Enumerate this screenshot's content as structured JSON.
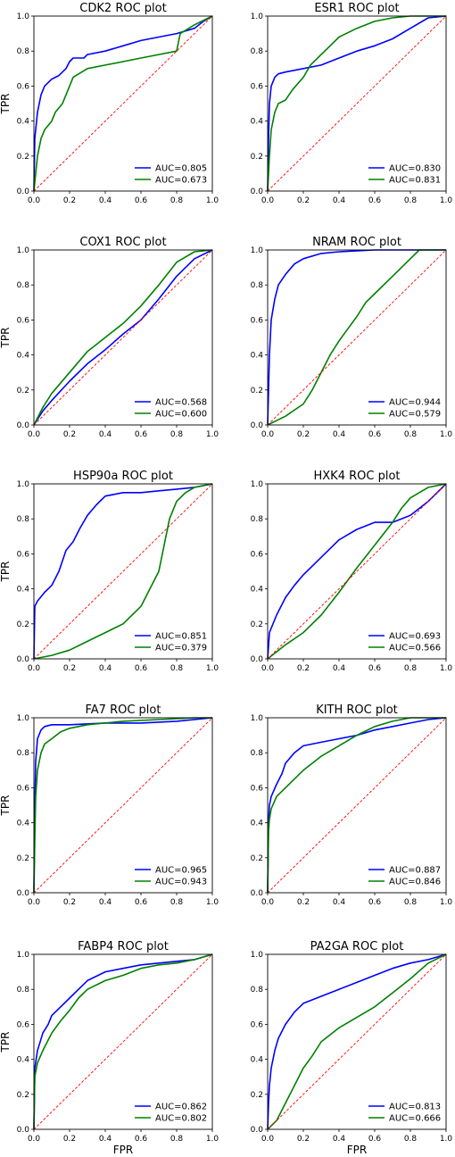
{
  "figure": {
    "xlabel": "FPR",
    "ylabel": "TPR"
  },
  "colors": {
    "series1": "#0000ff",
    "series2": "#008000",
    "diagonal": "#ff0000"
  },
  "chart_data": [
    {
      "type": "line",
      "title": "CDK2 ROC plot",
      "xlim": [
        0,
        1
      ],
      "ylim": [
        0,
        1
      ],
      "xticks": [
        "0.0",
        "0.2",
        "0.4",
        "0.6",
        "0.8",
        "1.0"
      ],
      "yticks": [
        "0.0",
        "0.2",
        "0.4",
        "0.6",
        "0.8",
        "1.0"
      ],
      "ylabel": "TPR",
      "xlabel": "",
      "legend": "lower-right",
      "series": [
        {
          "name": "AUC=0.805",
          "x": [
            0,
            0.005,
            0.02,
            0.04,
            0.06,
            0.1,
            0.14,
            0.18,
            0.2,
            0.22,
            0.28,
            0.3,
            0.4,
            0.5,
            0.6,
            0.7,
            0.8,
            0.9,
            0.95,
            1
          ],
          "y": [
            0,
            0.3,
            0.45,
            0.55,
            0.6,
            0.64,
            0.66,
            0.7,
            0.74,
            0.76,
            0.76,
            0.78,
            0.8,
            0.83,
            0.86,
            0.88,
            0.9,
            0.93,
            0.97,
            1
          ]
        },
        {
          "name": "AUC=0.673",
          "x": [
            0,
            0.01,
            0.02,
            0.04,
            0.06,
            0.1,
            0.12,
            0.16,
            0.18,
            0.2,
            0.22,
            0.3,
            0.4,
            0.5,
            0.6,
            0.7,
            0.8,
            0.82,
            0.9,
            0.96,
            1
          ],
          "y": [
            0,
            0.1,
            0.2,
            0.3,
            0.35,
            0.4,
            0.45,
            0.5,
            0.55,
            0.6,
            0.65,
            0.7,
            0.72,
            0.74,
            0.76,
            0.78,
            0.8,
            0.9,
            0.95,
            0.98,
            1
          ]
        },
        {
          "name": "",
          "x": [
            0,
            1
          ],
          "y": [
            0,
            1
          ]
        }
      ]
    },
    {
      "type": "line",
      "title": "ESR1 ROC plot",
      "xlim": [
        0,
        1
      ],
      "ylim": [
        0,
        1
      ],
      "xticks": [
        "0.0",
        "0.2",
        "0.4",
        "0.6",
        "0.8",
        "1.0"
      ],
      "yticks": [
        "0.0",
        "0.2",
        "0.4",
        "0.6",
        "0.8",
        "1.0"
      ],
      "ylabel": "",
      "xlabel": "",
      "legend": "lower-right",
      "series": [
        {
          "name": "AUC=0.830",
          "x": [
            0,
            0.005,
            0.01,
            0.02,
            0.04,
            0.06,
            0.1,
            0.2,
            0.3,
            0.4,
            0.5,
            0.6,
            0.7,
            0.8,
            0.9,
            1
          ],
          "y": [
            0,
            0.3,
            0.5,
            0.6,
            0.65,
            0.67,
            0.68,
            0.7,
            0.72,
            0.76,
            0.8,
            0.83,
            0.87,
            0.93,
            0.99,
            1
          ]
        },
        {
          "name": "AUC=0.831",
          "x": [
            0,
            0.01,
            0.02,
            0.04,
            0.06,
            0.1,
            0.14,
            0.2,
            0.24,
            0.3,
            0.36,
            0.4,
            0.5,
            0.6,
            0.7,
            0.8,
            0.9,
            1
          ],
          "y": [
            0,
            0.2,
            0.35,
            0.45,
            0.5,
            0.52,
            0.58,
            0.65,
            0.72,
            0.78,
            0.84,
            0.88,
            0.93,
            0.97,
            0.99,
            1,
            1,
            1
          ]
        },
        {
          "name": "",
          "x": [
            0,
            1
          ],
          "y": [
            0,
            1
          ]
        }
      ]
    },
    {
      "type": "line",
      "title": "COX1 ROC plot",
      "xlim": [
        0,
        1
      ],
      "ylim": [
        0,
        1
      ],
      "xticks": [
        "0.0",
        "0.2",
        "0.4",
        "0.6",
        "0.8",
        "1.0"
      ],
      "yticks": [
        "0.0",
        "0.2",
        "0.4",
        "0.6",
        "0.8",
        "1.0"
      ],
      "ylabel": "TPR",
      "xlabel": "",
      "legend": "lower-right",
      "series": [
        {
          "name": "AUC=0.568",
          "x": [
            0,
            0.05,
            0.1,
            0.2,
            0.3,
            0.4,
            0.5,
            0.6,
            0.7,
            0.8,
            0.9,
            1
          ],
          "y": [
            0,
            0.08,
            0.14,
            0.25,
            0.35,
            0.43,
            0.52,
            0.6,
            0.72,
            0.85,
            0.95,
            1
          ]
        },
        {
          "name": "AUC=0.600",
          "x": [
            0,
            0.05,
            0.1,
            0.2,
            0.3,
            0.4,
            0.5,
            0.6,
            0.7,
            0.8,
            0.9,
            1
          ],
          "y": [
            0,
            0.1,
            0.18,
            0.3,
            0.42,
            0.5,
            0.58,
            0.68,
            0.8,
            0.93,
            0.99,
            1
          ]
        },
        {
          "name": "",
          "x": [
            0,
            1
          ],
          "y": [
            0,
            1
          ]
        }
      ]
    },
    {
      "type": "line",
      "title": "NRAM ROC plot",
      "xlim": [
        0,
        1
      ],
      "ylim": [
        0,
        1
      ],
      "xticks": [
        "0.0",
        "0.2",
        "0.4",
        "0.6",
        "0.8",
        "1.0"
      ],
      "yticks": [
        "0.0",
        "0.2",
        "0.4",
        "0.6",
        "0.8",
        "1.0"
      ],
      "ylabel": "",
      "xlabel": "",
      "legend": "lower-right",
      "series": [
        {
          "name": "AUC=0.944",
          "x": [
            0,
            0.005,
            0.01,
            0.02,
            0.04,
            0.06,
            0.1,
            0.15,
            0.2,
            0.3,
            0.4,
            0.6,
            0.8,
            1
          ],
          "y": [
            0,
            0.2,
            0.4,
            0.6,
            0.72,
            0.8,
            0.86,
            0.92,
            0.95,
            0.98,
            0.99,
            1,
            1,
            1
          ]
        },
        {
          "name": "AUC=0.579",
          "x": [
            0,
            0.1,
            0.2,
            0.25,
            0.3,
            0.35,
            0.4,
            0.45,
            0.5,
            0.55,
            0.6,
            0.7,
            0.8,
            0.85,
            1
          ],
          "y": [
            0,
            0.05,
            0.12,
            0.2,
            0.3,
            0.4,
            0.48,
            0.55,
            0.62,
            0.7,
            0.75,
            0.85,
            0.95,
            1,
            1
          ]
        },
        {
          "name": "",
          "x": [
            0,
            1
          ],
          "y": [
            0,
            1
          ]
        }
      ]
    },
    {
      "type": "line",
      "title": "HSP90a ROC plot",
      "xlim": [
        0,
        1
      ],
      "ylim": [
        0,
        1
      ],
      "xticks": [
        "0.0",
        "0.2",
        "0.4",
        "0.6",
        "0.8",
        "1.0"
      ],
      "yticks": [
        "0.0",
        "0.2",
        "0.4",
        "0.6",
        "0.8",
        "1.0"
      ],
      "ylabel": "TPR",
      "xlabel": "",
      "legend": "lower-right",
      "series": [
        {
          "name": "AUC=0.851",
          "x": [
            0,
            0.005,
            0.02,
            0.06,
            0.1,
            0.14,
            0.18,
            0.22,
            0.26,
            0.3,
            0.35,
            0.4,
            0.5,
            0.6,
            0.7,
            0.8,
            0.9,
            1
          ],
          "y": [
            0,
            0.3,
            0.33,
            0.38,
            0.42,
            0.5,
            0.62,
            0.67,
            0.75,
            0.82,
            0.88,
            0.93,
            0.95,
            0.95,
            0.96,
            0.97,
            0.98,
            1
          ]
        },
        {
          "name": "AUC=0.379",
          "x": [
            0,
            0.1,
            0.2,
            0.3,
            0.4,
            0.5,
            0.6,
            0.65,
            0.7,
            0.72,
            0.74,
            0.76,
            0.8,
            0.85,
            0.9,
            1
          ],
          "y": [
            0,
            0.02,
            0.05,
            0.1,
            0.15,
            0.2,
            0.3,
            0.4,
            0.5,
            0.6,
            0.7,
            0.8,
            0.9,
            0.95,
            0.98,
            1
          ]
        },
        {
          "name": "",
          "x": [
            0,
            1
          ],
          "y": [
            0,
            1
          ]
        }
      ]
    },
    {
      "type": "line",
      "title": "HXK4 ROC plot",
      "xlim": [
        0,
        1
      ],
      "ylim": [
        0,
        1
      ],
      "xticks": [
        "0.0",
        "0.2",
        "0.4",
        "0.6",
        "0.8",
        "1.0"
      ],
      "yticks": [
        "0.0",
        "0.2",
        "0.4",
        "0.6",
        "0.8",
        "1.0"
      ],
      "ylabel": "",
      "xlabel": "",
      "legend": "lower-right",
      "series": [
        {
          "name": "AUC=0.693",
          "x": [
            0,
            0.01,
            0.05,
            0.1,
            0.15,
            0.2,
            0.3,
            0.4,
            0.5,
            0.6,
            0.7,
            0.8,
            0.9,
            1
          ],
          "y": [
            0,
            0.15,
            0.25,
            0.35,
            0.42,
            0.48,
            0.58,
            0.68,
            0.74,
            0.78,
            0.78,
            0.82,
            0.9,
            1
          ]
        },
        {
          "name": "AUC=0.566",
          "x": [
            0,
            0.1,
            0.2,
            0.3,
            0.4,
            0.5,
            0.6,
            0.7,
            0.75,
            0.8,
            0.9,
            1
          ],
          "y": [
            0,
            0.08,
            0.15,
            0.25,
            0.38,
            0.52,
            0.65,
            0.78,
            0.86,
            0.92,
            0.98,
            1
          ]
        },
        {
          "name": "",
          "x": [
            0,
            1
          ],
          "y": [
            0,
            1
          ]
        }
      ]
    },
    {
      "type": "line",
      "title": "FA7 ROC plot",
      "xlim": [
        0,
        1
      ],
      "ylim": [
        0,
        1
      ],
      "xticks": [
        "0.0",
        "0.2",
        "0.4",
        "0.6",
        "0.8",
        "1.0"
      ],
      "yticks": [
        "0.0",
        "0.2",
        "0.4",
        "0.6",
        "0.8",
        "1.0"
      ],
      "ylabel": "TPR",
      "xlabel": "",
      "legend": "lower-right",
      "series": [
        {
          "name": "AUC=0.965",
          "x": [
            0,
            0.005,
            0.01,
            0.02,
            0.04,
            0.06,
            0.1,
            0.2,
            0.4,
            0.6,
            0.8,
            1
          ],
          "y": [
            0,
            0.5,
            0.75,
            0.88,
            0.93,
            0.95,
            0.96,
            0.96,
            0.97,
            0.97,
            0.98,
            1
          ]
        },
        {
          "name": "AUC=0.943",
          "x": [
            0,
            0.005,
            0.01,
            0.02,
            0.04,
            0.06,
            0.1,
            0.15,
            0.2,
            0.3,
            0.5,
            0.7,
            0.9,
            1
          ],
          "y": [
            0,
            0.3,
            0.55,
            0.7,
            0.8,
            0.85,
            0.88,
            0.92,
            0.94,
            0.96,
            0.98,
            0.99,
            1,
            1
          ]
        },
        {
          "name": "",
          "x": [
            0,
            1
          ],
          "y": [
            0,
            1
          ]
        }
      ]
    },
    {
      "type": "line",
      "title": "KITH ROC plot",
      "xlim": [
        0,
        1
      ],
      "ylim": [
        0,
        1
      ],
      "xticks": [
        "0.0",
        "0.2",
        "0.4",
        "0.6",
        "0.8",
        "1.0"
      ],
      "yticks": [
        "0.0",
        "0.2",
        "0.4",
        "0.6",
        "0.8",
        "1.0"
      ],
      "ylabel": "",
      "xlabel": "",
      "legend": "lower-right",
      "series": [
        {
          "name": "AUC=0.887",
          "x": [
            0,
            0.005,
            0.01,
            0.02,
            0.05,
            0.08,
            0.1,
            0.15,
            0.2,
            0.3,
            0.4,
            0.5,
            0.6,
            0.7,
            0.8,
            0.9,
            1
          ],
          "y": [
            0,
            0.4,
            0.5,
            0.55,
            0.62,
            0.68,
            0.74,
            0.8,
            0.84,
            0.86,
            0.88,
            0.9,
            0.93,
            0.95,
            0.97,
            0.99,
            1
          ]
        },
        {
          "name": "AUC=0.846",
          "x": [
            0,
            0.005,
            0.01,
            0.02,
            0.05,
            0.1,
            0.15,
            0.2,
            0.25,
            0.3,
            0.4,
            0.5,
            0.6,
            0.7,
            0.8,
            1
          ],
          "y": [
            0,
            0.35,
            0.42,
            0.48,
            0.55,
            0.6,
            0.65,
            0.7,
            0.74,
            0.78,
            0.84,
            0.9,
            0.95,
            0.98,
            1,
            1
          ]
        },
        {
          "name": "",
          "x": [
            0,
            1
          ],
          "y": [
            0,
            1
          ]
        }
      ]
    },
    {
      "type": "line",
      "title": "FABP4 ROC plot",
      "xlim": [
        0,
        1
      ],
      "ylim": [
        0,
        1
      ],
      "xticks": [
        "0.0",
        "0.2",
        "0.4",
        "0.6",
        "0.8",
        "1.0"
      ],
      "yticks": [
        "0.0",
        "0.2",
        "0.4",
        "0.6",
        "0.8",
        "1.0"
      ],
      "ylabel": "TPR",
      "xlabel": "FPR",
      "legend": "lower-right",
      "series": [
        {
          "name": "AUC=0.862",
          "x": [
            0,
            0.005,
            0.02,
            0.05,
            0.08,
            0.1,
            0.15,
            0.2,
            0.25,
            0.3,
            0.4,
            0.5,
            0.6,
            0.7,
            0.8,
            0.9,
            1
          ],
          "y": [
            0,
            0.35,
            0.45,
            0.55,
            0.6,
            0.65,
            0.7,
            0.75,
            0.8,
            0.85,
            0.9,
            0.92,
            0.94,
            0.95,
            0.96,
            0.97,
            1
          ]
        },
        {
          "name": "AUC=0.802",
          "x": [
            0,
            0.005,
            0.02,
            0.05,
            0.1,
            0.15,
            0.2,
            0.25,
            0.3,
            0.4,
            0.5,
            0.6,
            0.7,
            0.8,
            0.9,
            1
          ],
          "y": [
            0,
            0.3,
            0.38,
            0.45,
            0.55,
            0.62,
            0.68,
            0.75,
            0.8,
            0.85,
            0.88,
            0.92,
            0.94,
            0.95,
            0.97,
            1
          ]
        },
        {
          "name": "",
          "x": [
            0,
            1
          ],
          "y": [
            0,
            1
          ]
        }
      ]
    },
    {
      "type": "line",
      "title": "PA2GA ROC plot",
      "xlim": [
        0,
        1
      ],
      "ylim": [
        0,
        1
      ],
      "xticks": [
        "0.0",
        "0.2",
        "0.4",
        "0.6",
        "0.8",
        "1.0"
      ],
      "yticks": [
        "0.0",
        "0.2",
        "0.4",
        "0.6",
        "0.8",
        "1.0"
      ],
      "ylabel": "",
      "xlabel": "FPR",
      "legend": "lower-right",
      "series": [
        {
          "name": "AUC=0.813",
          "x": [
            0,
            0.005,
            0.01,
            0.02,
            0.04,
            0.06,
            0.1,
            0.15,
            0.2,
            0.3,
            0.4,
            0.5,
            0.6,
            0.7,
            0.8,
            0.9,
            1
          ],
          "y": [
            0,
            0.15,
            0.25,
            0.35,
            0.45,
            0.52,
            0.6,
            0.67,
            0.72,
            0.76,
            0.8,
            0.84,
            0.88,
            0.92,
            0.95,
            0.97,
            1
          ]
        },
        {
          "name": "AUC=0.666",
          "x": [
            0,
            0.05,
            0.1,
            0.15,
            0.2,
            0.25,
            0.3,
            0.4,
            0.5,
            0.6,
            0.7,
            0.8,
            0.9,
            1
          ],
          "y": [
            0,
            0.05,
            0.15,
            0.25,
            0.35,
            0.42,
            0.5,
            0.58,
            0.64,
            0.7,
            0.78,
            0.86,
            0.95,
            1
          ]
        },
        {
          "name": "",
          "x": [
            0,
            1
          ],
          "y": [
            0,
            1
          ]
        }
      ]
    }
  ]
}
